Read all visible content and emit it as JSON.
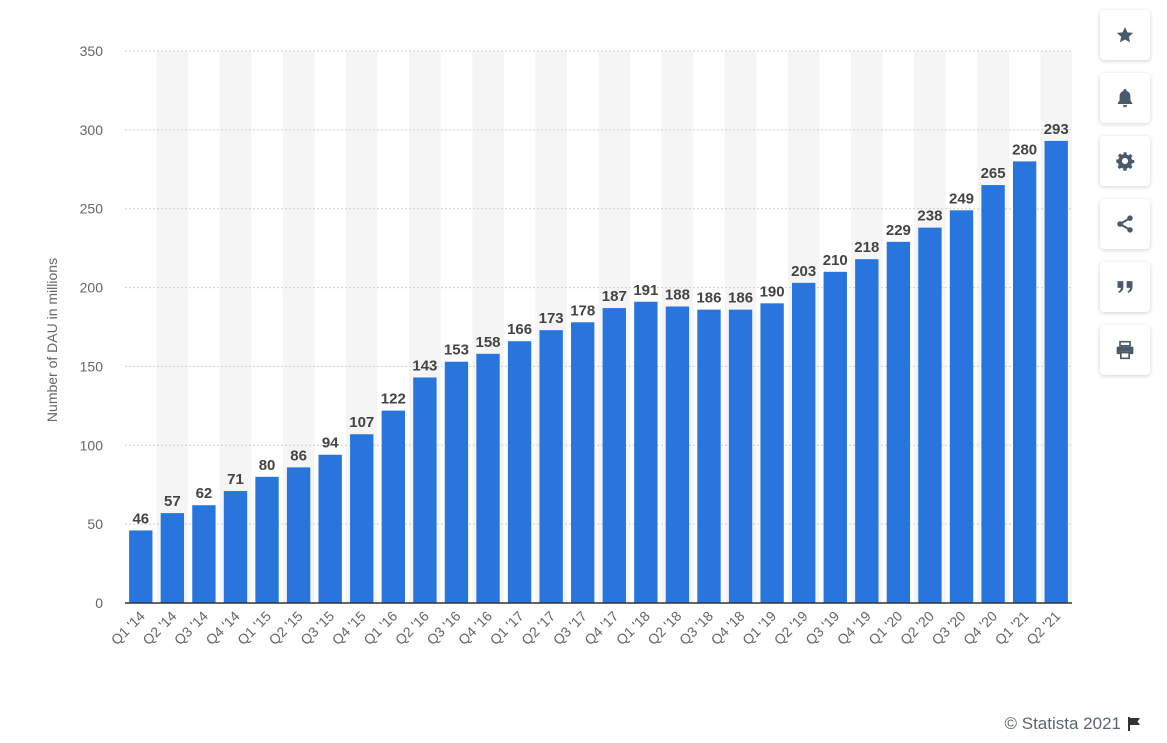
{
  "chart_data": {
    "type": "bar",
    "title": "",
    "xlabel": "",
    "ylabel": "Number of DAU in millions",
    "ylim": [
      0,
      350
    ],
    "yticks": [
      0,
      50,
      100,
      150,
      200,
      250,
      300,
      350
    ],
    "grid": true,
    "legend": "none",
    "bar_color": "#2876dd",
    "categories": [
      "Q1 '14",
      "Q2 '14",
      "Q3 '14",
      "Q4 '14",
      "Q1 '15",
      "Q2 '15",
      "Q3 '15",
      "Q4 '15",
      "Q1 '16",
      "Q2 '16",
      "Q3 '16",
      "Q4 '16",
      "Q1 '17",
      "Q2 '17",
      "Q3 '17",
      "Q4 '17",
      "Q1 '18",
      "Q2 '18",
      "Q3 '18",
      "Q4 '18",
      "Q1 '19",
      "Q2 '19",
      "Q3 '19",
      "Q4 '19",
      "Q1 '20",
      "Q2 '20",
      "Q3 '20",
      "Q4 '20",
      "Q1 '21",
      "Q2 '21"
    ],
    "values": [
      46,
      57,
      62,
      71,
      80,
      86,
      94,
      107,
      122,
      143,
      153,
      158,
      166,
      173,
      178,
      187,
      191,
      188,
      186,
      186,
      190,
      203,
      210,
      218,
      229,
      238,
      249,
      265,
      280,
      293
    ]
  },
  "sidebar": {
    "buttons": [
      {
        "id": "favorite",
        "icon": "star-icon"
      },
      {
        "id": "notify",
        "icon": "bell-icon"
      },
      {
        "id": "settings",
        "icon": "gear-icon"
      },
      {
        "id": "share",
        "icon": "share-icon"
      },
      {
        "id": "cite",
        "icon": "quote-icon"
      },
      {
        "id": "print",
        "icon": "print-icon"
      }
    ],
    "icon_color": "#4a5a6a"
  },
  "footer": {
    "copyright": "© Statista 2021",
    "flag_icon": "flag-icon"
  }
}
